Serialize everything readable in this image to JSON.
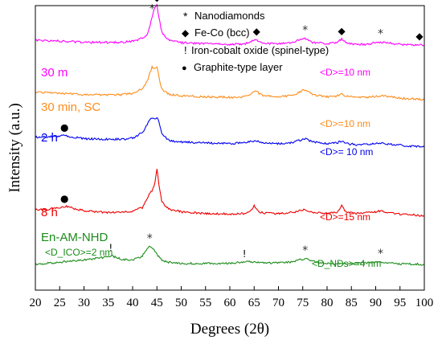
{
  "chart_data": {
    "type": "line",
    "xlabel": "Degrees (2θ)",
    "ylabel": "Intensity (a.u.)",
    "xlim": [
      20,
      100
    ],
    "xticks": [
      20,
      25,
      30,
      35,
      40,
      45,
      50,
      55,
      60,
      65,
      70,
      75,
      80,
      85,
      90,
      95,
      100
    ],
    "yticks_shown": false,
    "legend": {
      "position": "top-center",
      "entries": [
        {
          "symbol": "*",
          "label": "Nanodiamonds"
        },
        {
          "symbol": "◆",
          "label": "Fe-Co (bcc)"
        },
        {
          "symbol": "!",
          "label": "Iron-cobalt oxide (spinel-type)"
        },
        {
          "symbol": "●",
          "label": "Graphite-type layer"
        }
      ]
    },
    "series": [
      {
        "name": "30 m",
        "color": "#ff00ff",
        "label_text": "30 m",
        "size_label": "<D>=10 nm",
        "baseline": 0.86,
        "x": [
          20,
          25,
          30,
          35,
          38,
          40,
          42,
          43,
          43.5,
          44,
          44.5,
          45,
          45.5,
          46,
          47,
          48,
          50,
          55,
          60,
          63,
          64,
          65,
          65.5,
          66,
          67,
          70,
          73,
          74,
          75,
          75.5,
          76,
          77,
          80,
          82,
          82.5,
          83,
          83.5,
          84,
          86,
          88,
          90,
          91,
          92,
          94,
          96,
          98,
          99,
          100
        ],
        "y": [
          0.1,
          0.08,
          0.06,
          0.055,
          0.06,
          0.08,
          0.13,
          0.2,
          0.33,
          0.52,
          0.7,
          0.74,
          0.48,
          0.25,
          0.12,
          0.08,
          0.05,
          0.03,
          0.02,
          0.03,
          0.055,
          0.1,
          0.11,
          0.07,
          0.04,
          0.03,
          0.06,
          0.09,
          0.12,
          0.13,
          0.11,
          0.06,
          0.03,
          0.05,
          0.09,
          0.12,
          0.08,
          0.04,
          0.02,
          0.02,
          0.05,
          0.06,
          0.05,
          0.03,
          0.015,
          0.01,
          0.02,
          0.01
        ]
      },
      {
        "name": "30 min, SC",
        "color": "#ff8c1a",
        "label_text": "30 min, SC",
        "size_label": "<D>=10 nm",
        "baseline": 0.67,
        "x": [
          20,
          25,
          30,
          35,
          38,
          40,
          42,
          43,
          43.5,
          44,
          44.5,
          45,
          45.5,
          46,
          47,
          48,
          50,
          55,
          60,
          63,
          64,
          65,
          65.5,
          66,
          67,
          70,
          73,
          74,
          75,
          75.5,
          76,
          77,
          80,
          82,
          82.5,
          83,
          83.5,
          84,
          86,
          88,
          90,
          91,
          92,
          94,
          96,
          98,
          100
        ],
        "y": [
          0.14,
          0.12,
          0.09,
          0.085,
          0.09,
          0.11,
          0.2,
          0.33,
          0.48,
          0.6,
          0.56,
          0.62,
          0.38,
          0.2,
          0.12,
          0.09,
          0.07,
          0.05,
          0.04,
          0.05,
          0.09,
          0.14,
          0.15,
          0.11,
          0.07,
          0.05,
          0.08,
          0.12,
          0.17,
          0.175,
          0.15,
          0.09,
          0.05,
          0.06,
          0.09,
          0.1,
          0.08,
          0.06,
          0.04,
          0.04,
          0.06,
          0.07,
          0.06,
          0.04,
          0.02,
          0.01,
          0.0
        ]
      },
      {
        "name": "2 h",
        "color": "#0000ee",
        "label_text": "2 h",
        "size_label": "<D>= 10 nm",
        "baseline": 0.5,
        "x": [
          20,
          22,
          25,
          26,
          27,
          30,
          35,
          38,
          40,
          42,
          43,
          43.5,
          44,
          44.5,
          45,
          45.5,
          46,
          47,
          48,
          50,
          55,
          60,
          63,
          64,
          65,
          65.5,
          66,
          67,
          70,
          73,
          74,
          75,
          75.5,
          76,
          77,
          80,
          82,
          82.5,
          83,
          83.5,
          84,
          86,
          88,
          90,
          91,
          92,
          94,
          96,
          98,
          100
        ],
        "y": [
          0.2,
          0.2,
          0.215,
          0.23,
          0.21,
          0.17,
          0.16,
          0.16,
          0.18,
          0.28,
          0.43,
          0.52,
          0.56,
          0.52,
          0.56,
          0.46,
          0.28,
          0.17,
          0.13,
          0.11,
          0.09,
          0.08,
          0.09,
          0.11,
          0.13,
          0.13,
          0.11,
          0.09,
          0.08,
          0.1,
          0.13,
          0.16,
          0.165,
          0.15,
          0.11,
          0.08,
          0.09,
          0.11,
          0.12,
          0.1,
          0.08,
          0.06,
          0.06,
          0.08,
          0.09,
          0.08,
          0.06,
          0.04,
          0.03,
          0.02
        ]
      },
      {
        "name": "8 h",
        "color": "#ee0000",
        "label_text": "8 h",
        "size_label": "<D>=15 nm",
        "baseline": 0.26,
        "x": [
          20,
          22,
          24,
          25,
          26,
          27,
          28,
          30,
          33,
          35,
          38,
          40,
          42,
          43,
          43.5,
          44,
          44.5,
          45,
          45.5,
          46,
          47,
          48,
          50,
          55,
          60,
          63,
          64,
          64.8,
          65,
          65.3,
          66,
          67,
          70,
          73,
          74,
          75,
          75.5,
          76,
          77,
          80,
          82,
          82.5,
          82.8,
          83,
          83.3,
          84,
          86,
          88,
          90,
          91,
          92,
          94,
          96,
          98,
          100
        ],
        "y": [
          0.13,
          0.12,
          0.14,
          0.16,
          0.18,
          0.17,
          0.14,
          0.1,
          0.08,
          0.07,
          0.07,
          0.09,
          0.16,
          0.32,
          0.44,
          0.47,
          0.56,
          0.88,
          0.52,
          0.28,
          0.16,
          0.12,
          0.08,
          0.05,
          0.04,
          0.05,
          0.08,
          0.15,
          0.19,
          0.15,
          0.08,
          0.06,
          0.05,
          0.07,
          0.09,
          0.12,
          0.125,
          0.1,
          0.07,
          0.05,
          0.07,
          0.11,
          0.18,
          0.21,
          0.15,
          0.07,
          0.05,
          0.06,
          0.08,
          0.1,
          0.08,
          0.05,
          0.03,
          0.02,
          0.01
        ]
      },
      {
        "name": "En-AM-NHD",
        "color": "#1a8c1a",
        "label_text": "En-AM-NHD",
        "ico_label": "<D_ICO>=2 nm",
        "nd_label": "<D_NDs>=4 nm",
        "baseline": 0.09,
        "x": [
          20,
          22,
          25,
          28,
          30,
          32,
          34,
          35,
          35.5,
          36,
          37,
          38,
          40,
          41,
          42,
          42.5,
          43,
          43.5,
          44,
          44.5,
          45,
          46,
          47,
          48,
          50,
          55,
          60,
          62,
          63,
          64,
          65,
          68,
          70,
          72,
          73,
          74,
          75,
          75.5,
          76,
          77,
          78,
          80,
          85,
          88,
          90,
          91,
          92,
          94,
          96,
          98,
          100
        ],
        "y": [
          0.01,
          0.02,
          0.04,
          0.07,
          0.09,
          0.11,
          0.13,
          0.15,
          0.16,
          0.15,
          0.12,
          0.09,
          0.09,
          0.11,
          0.16,
          0.22,
          0.3,
          0.33,
          0.32,
          0.26,
          0.18,
          0.09,
          0.05,
          0.04,
          0.02,
          0.02,
          0.02,
          0.04,
          0.05,
          0.05,
          0.04,
          0.03,
          0.03,
          0.04,
          0.06,
          0.08,
          0.1,
          0.105,
          0.09,
          0.06,
          0.04,
          0.02,
          0.02,
          0.03,
          0.04,
          0.045,
          0.04,
          0.02,
          0.01,
          0.01,
          0.0
        ]
      }
    ],
    "annotations": [
      {
        "symbol": "*",
        "x": 44.0,
        "series": "30 m",
        "color": "#333333"
      },
      {
        "symbol": "◆",
        "x": 45.0,
        "series": "30 m",
        "color": "#000000"
      },
      {
        "symbol": "◆",
        "x": 65.5,
        "series": "30 m",
        "color": "#000000"
      },
      {
        "symbol": "*",
        "x": 75.5,
        "series": "30 m",
        "color": "#333333"
      },
      {
        "symbol": "◆",
        "x": 83.0,
        "series": "30 m",
        "color": "#000000"
      },
      {
        "symbol": "*",
        "x": 91.0,
        "series": "30 m",
        "color": "#333333"
      },
      {
        "symbol": "◆",
        "x": 99.0,
        "series": "30 m",
        "color": "#000000"
      },
      {
        "symbol": "●",
        "x": 26.0,
        "series": "2 h",
        "color": "#000000"
      },
      {
        "symbol": "●",
        "x": 26.0,
        "series": "8 h",
        "color": "#000000"
      },
      {
        "symbol": "*",
        "x": 43.5,
        "series": "En-AM-NHD",
        "color": "#333333"
      },
      {
        "symbol": "!",
        "x": 35.5,
        "series": "En-AM-NHD",
        "color": "#000000"
      },
      {
        "symbol": "!",
        "x": 63.0,
        "series": "En-AM-NHD",
        "color": "#000000"
      },
      {
        "symbol": "*",
        "x": 75.5,
        "series": "En-AM-NHD",
        "color": "#333333"
      },
      {
        "symbol": "*",
        "x": 91.0,
        "series": "En-AM-NHD",
        "color": "#333333"
      }
    ]
  }
}
